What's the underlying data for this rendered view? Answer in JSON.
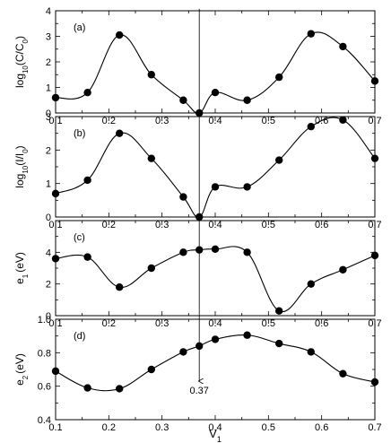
{
  "chart_data": [
    {
      "type": "line",
      "panel_label": "(a)",
      "ylabel": "log10(C/C0)",
      "xlim": [
        0.1,
        0.7
      ],
      "ylim": [
        0,
        4
      ],
      "yticks": [
        0,
        1,
        2,
        3,
        4
      ],
      "x": [
        0.1,
        0.16,
        0.22,
        0.28,
        0.34,
        0.37,
        0.4,
        0.46,
        0.52,
        0.58,
        0.64,
        0.7
      ],
      "y": [
        0.6,
        0.8,
        3.05,
        1.5,
        0.5,
        0.0,
        0.8,
        0.5,
        1.4,
        3.1,
        2.6,
        1.25
      ]
    },
    {
      "type": "line",
      "panel_label": "(b)",
      "ylabel": "log10(I/I0)",
      "xlim": [
        0.1,
        0.7
      ],
      "ylim": [
        0,
        3
      ],
      "yticks": [
        0,
        1,
        2,
        3
      ],
      "x": [
        0.1,
        0.16,
        0.22,
        0.28,
        0.34,
        0.37,
        0.4,
        0.46,
        0.52,
        0.58,
        0.64,
        0.7
      ],
      "y": [
        0.7,
        1.1,
        2.5,
        1.75,
        0.6,
        0.0,
        0.9,
        0.9,
        1.7,
        2.7,
        2.9,
        1.75
      ]
    },
    {
      "type": "line",
      "panel_label": "(c)",
      "ylabel": "e1 (eV)",
      "xlim": [
        0.1,
        0.7
      ],
      "ylim": [
        0,
        6
      ],
      "yticks": [
        0,
        2,
        4
      ],
      "x": [
        0.1,
        0.16,
        0.22,
        0.28,
        0.34,
        0.37,
        0.4,
        0.46,
        0.52,
        0.58,
        0.64,
        0.7
      ],
      "y": [
        3.6,
        3.7,
        1.8,
        3.0,
        4.0,
        4.15,
        4.2,
        4.0,
        0.3,
        2.0,
        2.9,
        3.8
      ]
    },
    {
      "type": "line",
      "panel_label": "(d)",
      "ylabel": "e2 (eV)",
      "xlabel": "V1",
      "xlim": [
        0.1,
        0.7
      ],
      "ylim": [
        0.4,
        1.0
      ],
      "yticks": [
        0.4,
        0.6,
        0.8,
        1.0
      ],
      "x": [
        0.1,
        0.16,
        0.22,
        0.28,
        0.34,
        0.37,
        0.4,
        0.46,
        0.52,
        0.58,
        0.64,
        0.7
      ],
      "y": [
        0.69,
        0.59,
        0.585,
        0.7,
        0.805,
        0.84,
        0.88,
        0.905,
        0.855,
        0.805,
        0.675,
        0.625
      ]
    }
  ],
  "xticks": [
    0.1,
    0.2,
    0.3,
    0.4,
    0.5,
    0.6,
    0.7
  ],
  "xlabel": "V1",
  "vline_x": 0.37,
  "annotation": "0.37",
  "colors": {
    "line": "#000000",
    "marker": "#000000",
    "background": "#ffffff"
  }
}
